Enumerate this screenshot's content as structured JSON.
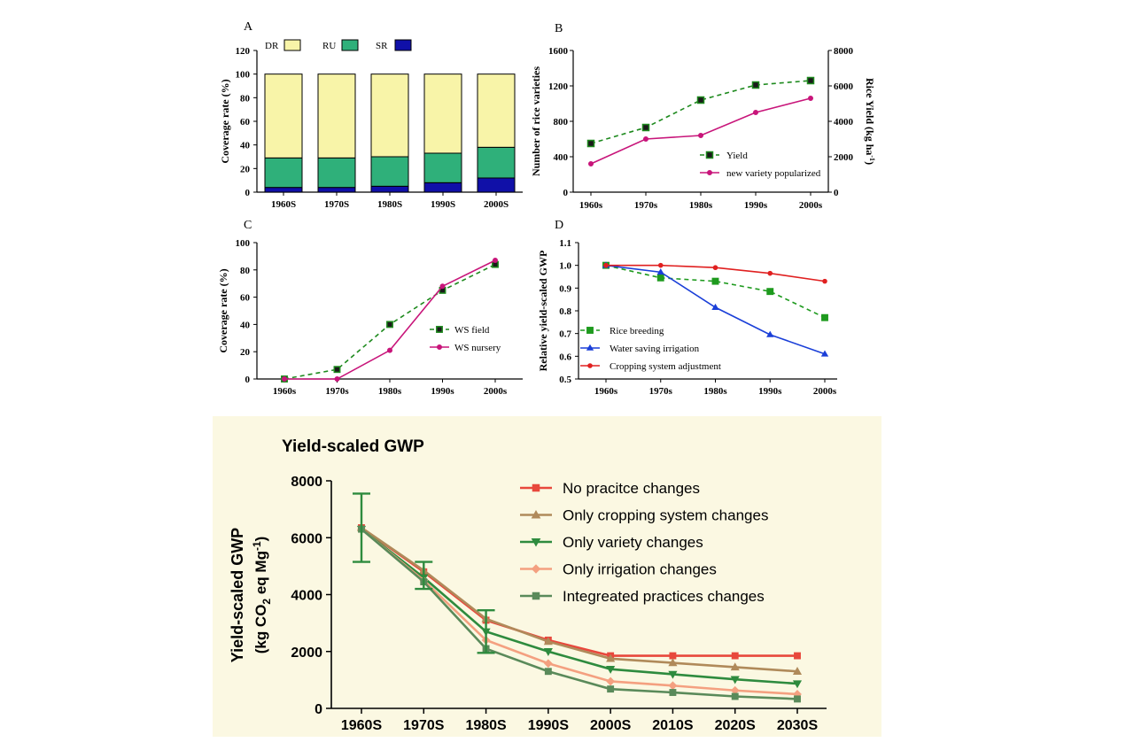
{
  "chart_data": [
    {
      "id": "A",
      "panel_label": "A",
      "type": "bar",
      "stacked": true,
      "categories": [
        "1960S",
        "1970S",
        "1980S",
        "1990S",
        "2000S"
      ],
      "series": [
        {
          "name": "SR",
          "color": "#1010a8",
          "values": [
            4,
            4,
            5,
            8,
            12
          ]
        },
        {
          "name": "RU",
          "color": "#2fb07a",
          "values": [
            25,
            25,
            25,
            25,
            26
          ]
        },
        {
          "name": "DR",
          "color": "#f8f4a8",
          "values": [
            71,
            71,
            70,
            67,
            62
          ]
        }
      ],
      "legend_order": [
        "DR",
        "RU",
        "SR"
      ],
      "ylabel": "Coverage rate (%)",
      "ylim": [
        0,
        120
      ],
      "yticks": [
        0,
        20,
        40,
        60,
        80,
        100,
        120
      ],
      "legend_position": "top"
    },
    {
      "id": "B",
      "panel_label": "B",
      "type": "line",
      "categories": [
        "1960s",
        "1970s",
        "1980s",
        "1990s",
        "2000s"
      ],
      "series": [
        {
          "name": "Yield",
          "axis": "right",
          "color": "#1e8a1e",
          "dashed": true,
          "marker": "square",
          "values": [
            2750,
            3650,
            5200,
            6050,
            6300
          ]
        },
        {
          "name": "new variety popularized",
          "axis": "left",
          "color": "#c8157a",
          "dashed": false,
          "marker": "circle",
          "values": [
            320,
            600,
            640,
            900,
            1060
          ]
        }
      ],
      "ylabel_left": "Number of rice varieties",
      "ylim_left": [
        0,
        1600
      ],
      "yticks_left": [
        0,
        400,
        800,
        1200,
        1600
      ],
      "ylabel_right": "Rice Yield (kg ha-1)",
      "ylim_right": [
        0,
        8000
      ],
      "yticks_right": [
        0,
        2000,
        4000,
        6000,
        8000
      ],
      "legend_position": "bottom-right"
    },
    {
      "id": "C",
      "panel_label": "C",
      "type": "line",
      "categories": [
        "1960s",
        "1970s",
        "1980s",
        "1990s",
        "2000s"
      ],
      "series": [
        {
          "name": "WS field",
          "color": "#1e8a1e",
          "dashed": true,
          "marker": "square",
          "values": [
            0,
            7,
            40,
            65,
            84
          ]
        },
        {
          "name": "WS nursery",
          "color": "#c8157a",
          "dashed": false,
          "marker": "circle",
          "values": [
            0,
            0,
            21,
            68,
            87
          ]
        }
      ],
      "ylabel": "Coverage rate (%)",
      "ylim": [
        0,
        100
      ],
      "yticks": [
        0,
        20,
        40,
        60,
        80,
        100
      ],
      "legend_position": "center-right"
    },
    {
      "id": "D",
      "panel_label": "D",
      "type": "line",
      "categories": [
        "1960s",
        "1970s",
        "1980s",
        "1990s",
        "2000s"
      ],
      "series": [
        {
          "name": "Rice breeding",
          "color": "#1e9a1e",
          "dashed": true,
          "marker": "square",
          "values": [
            1.0,
            0.945,
            0.93,
            0.885,
            0.77
          ]
        },
        {
          "name": "Water saving irrigation",
          "color": "#1a3fd8",
          "dashed": false,
          "marker": "triangle",
          "values": [
            1.0,
            0.97,
            0.815,
            0.695,
            0.61
          ]
        },
        {
          "name": "Cropping system adjustment",
          "color": "#e02020",
          "dashed": false,
          "marker": "circle",
          "values": [
            1.0,
            1.0,
            0.99,
            0.965,
            0.93
          ]
        }
      ],
      "ylabel": "Relative yield-scaled GWP",
      "ylim": [
        0.5,
        1.1
      ],
      "yticks": [
        0.5,
        0.6,
        0.7,
        0.8,
        0.9,
        1.0,
        1.1
      ],
      "ytick_labels": [
        "0.5",
        "0.6",
        "0.7",
        "0.8",
        "0.9",
        "1.0",
        "1.1"
      ],
      "legend_position": "bottom-left"
    },
    {
      "id": "E",
      "type": "line",
      "title": "Yield-scaled GWP",
      "background": "#fbf8e2",
      "categories": [
        "1960S",
        "1970S",
        "1980S",
        "1990S",
        "2000S",
        "2010S",
        "2020S",
        "2030S"
      ],
      "series": [
        {
          "name": "No pracitce changes",
          "color": "#e8483c",
          "marker": "square",
          "values": [
            6350,
            4800,
            3100,
            2400,
            1850,
            1850,
            1850,
            1850
          ]
        },
        {
          "name": "Only cropping system changes",
          "color": "#b08a5a",
          "marker": "triangle-up",
          "values": [
            6350,
            4850,
            3150,
            2350,
            1750,
            1600,
            1450,
            1300
          ]
        },
        {
          "name": "Only variety changes",
          "color": "#2e8b3e",
          "marker": "triangle-down",
          "values": [
            6300,
            4600,
            2700,
            2000,
            1380,
            1200,
            1020,
            870
          ]
        },
        {
          "name": "Only irrigation changes",
          "color": "#f4a080",
          "marker": "diamond",
          "values": [
            6300,
            4500,
            2400,
            1580,
            950,
            800,
            630,
            500
          ]
        },
        {
          "name": "Integreated practices changes",
          "color": "#5a8a5a",
          "marker": "square",
          "values": [
            6300,
            4450,
            2100,
            1300,
            680,
            560,
            420,
            330
          ]
        }
      ],
      "error_bars": [
        {
          "category": "1960S",
          "low": 5150,
          "high": 7550
        },
        {
          "category": "1970S",
          "low": 4200,
          "high": 5150
        },
        {
          "category": "1980S",
          "low": 1950,
          "high": 3450
        }
      ],
      "ylabel_line1": "Yield-scaled GWP",
      "ylabel_line2": "(kg CO2 eq Mg-1)",
      "ylim": [
        0,
        8000
      ],
      "yticks": [
        0,
        2000,
        4000,
        6000,
        8000
      ],
      "legend_position": "top-right"
    }
  ]
}
